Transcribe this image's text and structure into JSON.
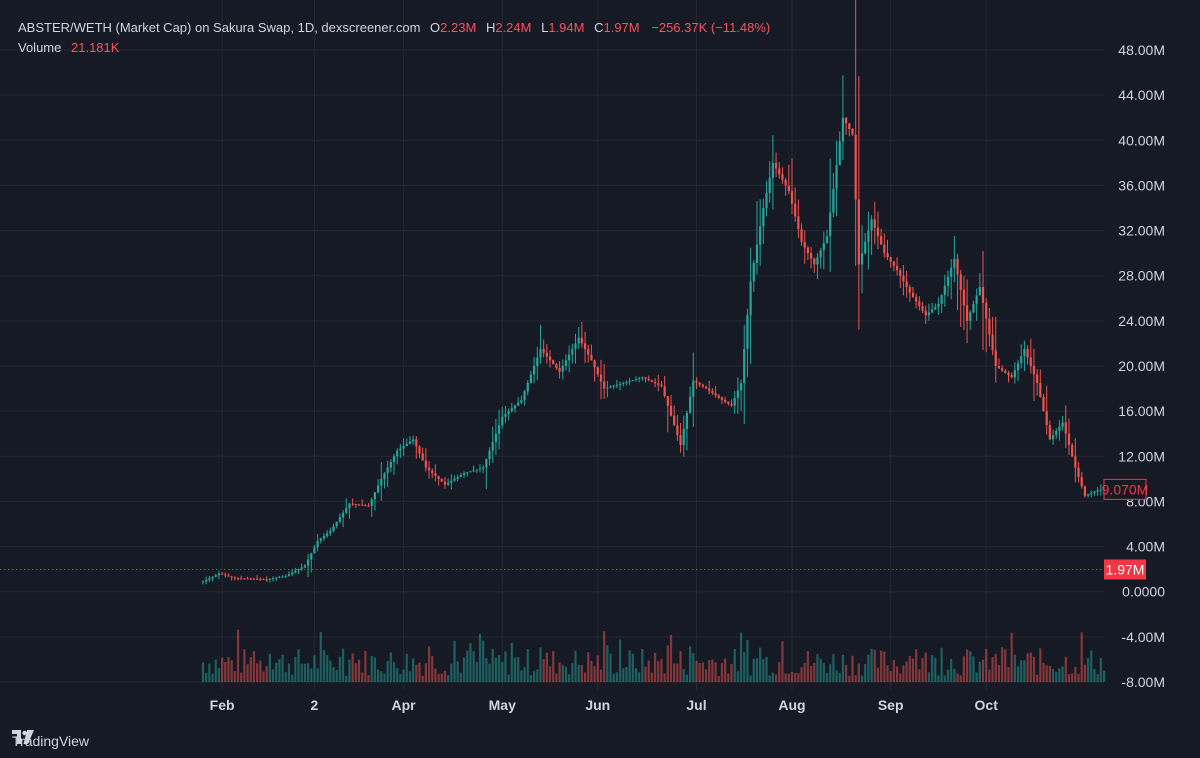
{
  "legend": {
    "symbol": "ABSTER/WETH (Market Cap) on Sakura Swap, 1D, dexscreener.com",
    "o_label": "O",
    "o_value": "2.23M",
    "h_label": "H",
    "h_value": "2.24M",
    "l_label": "L",
    "l_value": "1.94M",
    "c_label": "C",
    "c_value": "1.97M",
    "change": "−256.37K (−11.48%)",
    "volume_label": "Volume",
    "volume_value": "21.181K"
  },
  "footer": {
    "brand": "TradingView",
    "logo_icon": "tradingview-logo-icon"
  },
  "colors": {
    "up": "#26a69a",
    "down": "#ef5350",
    "bg": "#161a25",
    "grid": "#242833",
    "text": "#d1d4dc",
    "price_line": "#f23645"
  },
  "chart_data": {
    "type": "candlestick",
    "title": "ABSTER/WETH (Market Cap) on Sakura Swap, 1D, dexscreener.com",
    "y_unit": "USD market cap (M)",
    "ylim": [
      -8,
      48
    ],
    "y_ticks": [
      "48.00M",
      "44.00M",
      "40.00M",
      "36.00M",
      "32.00M",
      "28.00M",
      "24.00M",
      "20.00M",
      "16.00M",
      "12.00M",
      "8.00M",
      "4.00M",
      "0.0000",
      "-4.00M",
      "-8.00M"
    ],
    "x_ticks": [
      "Feb",
      "2",
      "Apr",
      "May",
      "Jun",
      "Jul",
      "Aug",
      "Sep",
      "Oct"
    ],
    "grid": true,
    "current_price_label": "9.070M",
    "ohlc_close_label": "1.97M",
    "ohlc_close_value": 1.97,
    "volume_overlay": true,
    "anchors": [
      {
        "day": 0,
        "close": 0.9
      },
      {
        "day": 5,
        "close": 1.6
      },
      {
        "day": 10,
        "close": 1.2
      },
      {
        "day": 20,
        "close": 1.1
      },
      {
        "day": 26,
        "close": 1.4
      },
      {
        "day": 32,
        "close": 2.3
      },
      {
        "day": 36,
        "close": 4.5
      },
      {
        "day": 40,
        "close": 5.4
      },
      {
        "day": 46,
        "close": 7.8
      },
      {
        "day": 52,
        "close": 7.6
      },
      {
        "day": 56,
        "close": 10.0
      },
      {
        "day": 61,
        "close": 12.5
      },
      {
        "day": 66,
        "close": 13.5
      },
      {
        "day": 70,
        "close": 11.0
      },
      {
        "day": 76,
        "close": 9.5
      },
      {
        "day": 82,
        "close": 10.5
      },
      {
        "day": 88,
        "close": 11.0
      },
      {
        "day": 94,
        "close": 15.5
      },
      {
        "day": 100,
        "close": 17.0
      },
      {
        "day": 106,
        "close": 21.5
      },
      {
        "day": 112,
        "close": 19.5
      },
      {
        "day": 118,
        "close": 22.5
      },
      {
        "day": 122,
        "close": 20.5
      },
      {
        "day": 126,
        "close": 18.0
      },
      {
        "day": 132,
        "close": 18.5
      },
      {
        "day": 138,
        "close": 19.0
      },
      {
        "day": 144,
        "close": 18.2
      },
      {
        "day": 150,
        "close": 13.0
      },
      {
        "day": 154,
        "close": 18.7
      },
      {
        "day": 158,
        "close": 18.0
      },
      {
        "day": 163,
        "close": 17.0
      },
      {
        "day": 166,
        "close": 16.5
      },
      {
        "day": 169,
        "close": 18.5
      },
      {
        "day": 172,
        "close": 27.5
      },
      {
        "day": 176,
        "close": 34.0
      },
      {
        "day": 179,
        "close": 38.0
      },
      {
        "day": 184,
        "close": 35.5
      },
      {
        "day": 188,
        "close": 31.0
      },
      {
        "day": 192,
        "close": 29.0
      },
      {
        "day": 196,
        "close": 31.5
      },
      {
        "day": 201,
        "close": 42.0
      },
      {
        "day": 204,
        "close": 40.5
      },
      {
        "day": 206,
        "close": 29.0
      },
      {
        "day": 210,
        "close": 33.0
      },
      {
        "day": 214,
        "close": 30.0
      },
      {
        "day": 218,
        "close": 28.5
      },
      {
        "day": 222,
        "close": 26.5
      },
      {
        "day": 227,
        "close": 24.5
      },
      {
        "day": 231,
        "close": 25.5
      },
      {
        "day": 236,
        "close": 29.5
      },
      {
        "day": 240,
        "close": 24.0
      },
      {
        "day": 244,
        "close": 27.0
      },
      {
        "day": 249,
        "close": 20.0
      },
      {
        "day": 254,
        "close": 19.0
      },
      {
        "day": 258,
        "close": 21.5
      },
      {
        "day": 262,
        "close": 18.5
      },
      {
        "day": 266,
        "close": 13.5
      },
      {
        "day": 270,
        "close": 15.0
      },
      {
        "day": 274,
        "close": 11.0
      },
      {
        "day": 277,
        "close": 8.5
      },
      {
        "day": 281,
        "close": 9.0
      },
      {
        "day": 283,
        "close": 9.07
      }
    ]
  }
}
